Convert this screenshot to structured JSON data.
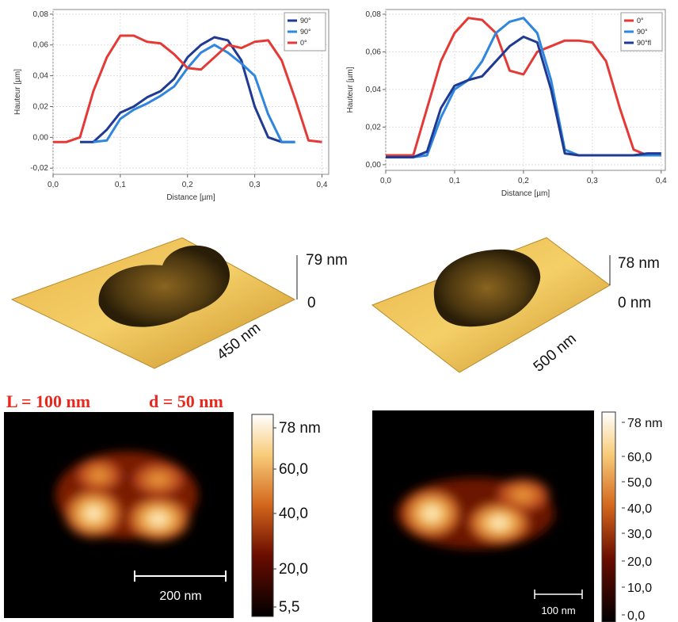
{
  "chart_data": [
    {
      "type": "line",
      "x_label": "Distance [µm]",
      "y_label": "Hauteur [µm]",
      "x": [
        0,
        0.02,
        0.04,
        0.06,
        0.08,
        0.1,
        0.12,
        0.14,
        0.16,
        0.18,
        0.2,
        0.22,
        0.24,
        0.26,
        0.28,
        0.3,
        0.32,
        0.34,
        0.36,
        0.38,
        0.4
      ],
      "series": [
        {
          "name": "90°",
          "color": "#1f3a93",
          "values": [
            null,
            null,
            -0.003,
            -0.003,
            0.005,
            0.016,
            0.02,
            0.026,
            0.03,
            0.038,
            0.052,
            0.06,
            0.065,
            0.063,
            0.05,
            0.02,
            0.0,
            -0.003,
            -0.003,
            null,
            null
          ]
        },
        {
          "name": "90°",
          "color": "#2e86de",
          "values": [
            null,
            null,
            null,
            -0.003,
            -0.002,
            0.012,
            0.018,
            0.022,
            0.027,
            0.033,
            0.045,
            0.055,
            0.06,
            0.055,
            0.048,
            0.04,
            0.015,
            -0.003,
            -0.003,
            null,
            null
          ]
        },
        {
          "name": "0°",
          "color": "#e53935",
          "values": [
            -0.003,
            -0.003,
            0.0,
            0.03,
            0.052,
            0.066,
            0.066,
            0.062,
            0.061,
            0.054,
            0.045,
            0.044,
            0.052,
            0.06,
            0.058,
            0.062,
            0.063,
            0.05,
            0.025,
            -0.002,
            -0.003
          ]
        }
      ],
      "xlim": [
        0,
        0.41
      ],
      "ylim": [
        -0.024,
        0.083
      ],
      "xticks": [
        {
          "value": 0,
          "label": "0,0"
        },
        {
          "value": 0.1,
          "label": "0,1"
        },
        {
          "value": 0.2,
          "label": "0,2"
        },
        {
          "value": 0.3,
          "label": "0,3"
        },
        {
          "value": 0.4,
          "label": "0,4"
        }
      ],
      "yticks": [
        {
          "value": -0.02,
          "label": "-0,02"
        },
        {
          "value": 0,
          "label": "0,00"
        },
        {
          "value": 0.02,
          "label": "0,02"
        },
        {
          "value": 0.04,
          "label": "0,04"
        },
        {
          "value": 0.06,
          "label": "0,06"
        },
        {
          "value": 0.08,
          "label": "0,08"
        }
      ],
      "grid": true,
      "legend": "upper right"
    },
    {
      "type": "line",
      "x_label": "Distance [µm]",
      "y_label": "Hauteur [µm]",
      "x": [
        0,
        0.02,
        0.04,
        0.06,
        0.08,
        0.1,
        0.12,
        0.14,
        0.16,
        0.18,
        0.2,
        0.22,
        0.24,
        0.26,
        0.28,
        0.3,
        0.32,
        0.34,
        0.36,
        0.38,
        0.4
      ],
      "series": [
        {
          "name": "0°",
          "color": "#e53935",
          "values": [
            0.005,
            0.005,
            0.005,
            0.03,
            0.055,
            0.07,
            0.078,
            0.077,
            0.07,
            0.05,
            0.048,
            0.06,
            0.063,
            0.066,
            0.066,
            0.065,
            0.055,
            0.03,
            0.008,
            0.005,
            0.005
          ]
        },
        {
          "name": "90°",
          "color": "#2e86de",
          "values": [
            0.004,
            0.004,
            0.004,
            0.005,
            0.025,
            0.04,
            0.045,
            0.055,
            0.07,
            0.076,
            0.078,
            0.07,
            0.045,
            0.008,
            0.005,
            0.005,
            0.005,
            0.005,
            0.005,
            0.005,
            0.005
          ]
        },
        {
          "name": "90°fl",
          "color": "#1f3a93",
          "values": [
            0.004,
            0.004,
            0.004,
            0.007,
            0.03,
            0.042,
            0.045,
            0.047,
            0.055,
            0.063,
            0.068,
            0.065,
            0.04,
            0.006,
            0.005,
            0.005,
            0.005,
            0.005,
            0.005,
            0.006,
            0.006
          ]
        }
      ],
      "xlim": [
        0,
        0.406
      ],
      "ylim": [
        -0.003,
        0.0825
      ],
      "xticks": [
        {
          "value": 0,
          "label": "0,0"
        },
        {
          "value": 0.1,
          "label": "0,1"
        },
        {
          "value": 0.2,
          "label": "0,2"
        },
        {
          "value": 0.3,
          "label": "0,3"
        },
        {
          "value": 0.4,
          "label": "0,4"
        }
      ],
      "yticks": [
        {
          "value": 0,
          "label": "0,00"
        },
        {
          "value": 0.02,
          "label": "0,02"
        },
        {
          "value": 0.04,
          "label": "0,04"
        },
        {
          "value": 0.06,
          "label": "0,06"
        },
        {
          "value": 0.08,
          "label": "0,08"
        }
      ],
      "grid": true,
      "legend": "upper right"
    }
  ],
  "panels": {
    "left_3d": {
      "z_top": "79 nm",
      "z_bottom": "0",
      "size": "450 nm"
    },
    "right_3d": {
      "z_top": "78 nm",
      "z_bottom": "0 nm",
      "size": "500 nm"
    },
    "caption": {
      "length": "L = 100 nm",
      "diameter": "d = 50 nm"
    },
    "left_2d": {
      "scale_bar": "200 nm",
      "colorbar": [
        "78 nm",
        "60,0",
        "40,0",
        "20,0",
        "5,5"
      ]
    },
    "right_2d": {
      "scale_bar": "100 nm",
      "colorbar": [
        "78 nm",
        "60,0",
        "50,0",
        "40,0",
        "30,0",
        "20,0",
        "10,0",
        "0,0"
      ]
    }
  }
}
